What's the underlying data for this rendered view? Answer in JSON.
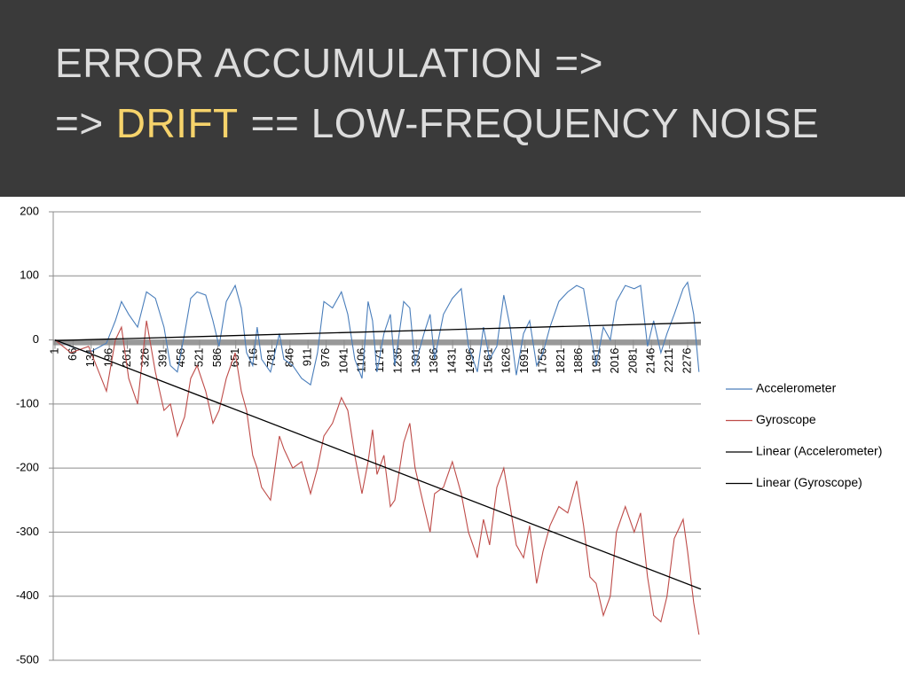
{
  "slide": {
    "title": {
      "line1": "ERROR ACCUMULATION =>",
      "line2": [
        "=>",
        "DRIFT",
        "== LOW-FREQUENCY NOISE"
      ]
    }
  },
  "chart_data": {
    "type": "line",
    "x": [
      1,
      58,
      122,
      186,
      218,
      240,
      266,
      298,
      330,
      362,
      393,
      416,
      441,
      467,
      489,
      512,
      543,
      569,
      591,
      617,
      649,
      671,
      690,
      712,
      728,
      744,
      776,
      808,
      824,
      856,
      888,
      920,
      945,
      968,
      999,
      1031,
      1054,
      1079,
      1105,
      1127,
      1143,
      1159,
      1184,
      1207,
      1223,
      1255,
      1277,
      1296,
      1328,
      1350,
      1366,
      1398,
      1430,
      1462,
      1488,
      1520,
      1542,
      1564,
      1590,
      1615,
      1638,
      1660,
      1686,
      1708,
      1733,
      1756,
      1781,
      1813,
      1845,
      1877,
      1902,
      1925,
      1947,
      1973,
      1998,
      2020,
      2052,
      2084,
      2107,
      2132,
      2154,
      2180,
      2202,
      2228,
      2260,
      2276,
      2298,
      2317
    ],
    "xlim": [
      1,
      2324
    ],
    "xticks": [
      1,
      66,
      131,
      196,
      261,
      326,
      391,
      456,
      521,
      586,
      651,
      716,
      781,
      846,
      911,
      976,
      1041,
      1106,
      1171,
      1236,
      1301,
      1366,
      1431,
      1496,
      1561,
      1626,
      1691,
      1756,
      1821,
      1886,
      1951,
      2016,
      2081,
      2146,
      2211,
      2276
    ],
    "ylim": [
      -500,
      200
    ],
    "yticks": [
      -500,
      -400,
      -300,
      -200,
      -100,
      0,
      100,
      200
    ],
    "grid": true,
    "legend": "right",
    "series": [
      {
        "name": "Accelerometer",
        "color": "#4a7ebb",
        "values": [
          0,
          -10,
          -20,
          -5,
          30,
          60,
          40,
          20,
          75,
          65,
          20,
          -40,
          -50,
          10,
          65,
          75,
          70,
          30,
          -10,
          60,
          85,
          50,
          -20,
          -40,
          20,
          -30,
          -50,
          10,
          -30,
          -40,
          -60,
          -70,
          -20,
          60,
          50,
          75,
          40,
          -30,
          -60,
          60,
          30,
          -50,
          10,
          40,
          -40,
          60,
          50,
          -40,
          10,
          40,
          -30,
          40,
          65,
          80,
          -10,
          -50,
          20,
          -30,
          -10,
          70,
          20,
          -55,
          10,
          30,
          -40,
          -20,
          20,
          60,
          75,
          85,
          80,
          20,
          -40,
          20,
          0,
          60,
          85,
          80,
          85,
          -10,
          30,
          -20,
          10,
          40,
          80,
          90,
          40,
          -50
        ]
      },
      {
        "name": "Gyroscope",
        "color": "#be4b48",
        "values": [
          0,
          -20,
          -10,
          -80,
          0,
          20,
          -60,
          -100,
          30,
          -50,
          -110,
          -100,
          -150,
          -120,
          -60,
          -40,
          -80,
          -130,
          -110,
          -60,
          -20,
          -80,
          -110,
          -180,
          -200,
          -230,
          -250,
          -150,
          -170,
          -200,
          -190,
          -240,
          -200,
          -150,
          -130,
          -90,
          -110,
          -180,
          -240,
          -190,
          -140,
          -210,
          -180,
          -260,
          -250,
          -160,
          -130,
          -200,
          -260,
          -300,
          -240,
          -230,
          -190,
          -240,
          -300,
          -340,
          -280,
          -320,
          -230,
          -200,
          -260,
          -320,
          -340,
          -290,
          -380,
          -330,
          -290,
          -260,
          -270,
          -220,
          -290,
          -370,
          -380,
          -430,
          -400,
          -300,
          -260,
          -300,
          -270,
          -370,
          -430,
          -440,
          -400,
          -310,
          -280,
          -330,
          -410,
          -460
        ]
      },
      {
        "name": "Linear (Accelerometer)",
        "color": "#000000",
        "x": [
          1,
          2324
        ],
        "values": [
          -1,
          27
        ]
      },
      {
        "name": "Linear (Gyroscope)",
        "color": "#000000",
        "x": [
          1,
          2324
        ],
        "values": [
          0,
          -389
        ]
      }
    ]
  }
}
